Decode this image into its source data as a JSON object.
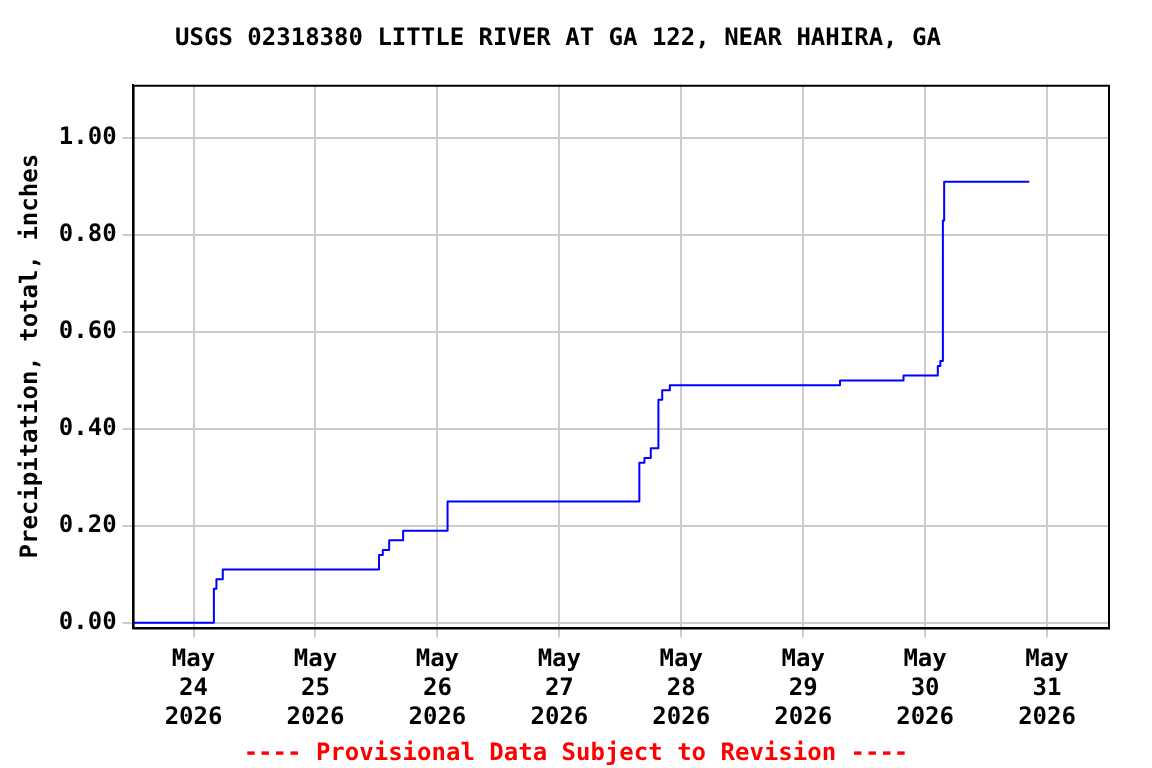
{
  "chart_data": {
    "type": "step",
    "title": "USGS 02318380 LITTLE RIVER AT GA 122, NEAR HAHIRA, GA",
    "ylabel": "Precipitation, total, inches",
    "x": [
      "2026-05-23T12:00",
      "2026-05-24T04:00",
      "2026-05-24T04:30",
      "2026-05-24T05:45",
      "2026-05-25T12:30",
      "2026-05-25T13:15",
      "2026-05-25T14:30",
      "2026-05-25T17:15",
      "2026-05-26T02:00",
      "2026-05-27T15:45",
      "2026-05-27T16:45",
      "2026-05-27T18:00",
      "2026-05-27T19:30",
      "2026-05-27T20:15",
      "2026-05-27T21:45",
      "2026-05-29T07:15",
      "2026-05-29T19:45",
      "2026-05-30T02:30",
      "2026-05-30T03:00",
      "2026-05-30T03:30",
      "2026-05-30T03:45",
      "2026-05-30T20:30"
    ],
    "series": [
      {
        "color": "#0000ff",
        "values": [
          0,
          0.07,
          0.09,
          0.11,
          0.14,
          0.15,
          0.17,
          0.19,
          0.25,
          0.33,
          0.34,
          0.36,
          0.46,
          0.48,
          0.49,
          0.5,
          0.51,
          0.53,
          0.54,
          0.83,
          0.91,
          0.91
        ]
      }
    ],
    "xlim": [
      "2026-05-23T12:00",
      "2026-05-31T12:00"
    ],
    "xticks": [
      {
        "value": "2026-05-24",
        "label": "May 24 2026"
      },
      {
        "value": "2026-05-25",
        "label": "May 25 2026"
      },
      {
        "value": "2026-05-26",
        "label": "May 26 2026"
      },
      {
        "value": "2026-05-27",
        "label": "May 27 2026"
      },
      {
        "value": "2026-05-28",
        "label": "May 28 2026"
      },
      {
        "value": "2026-05-29",
        "label": "May 29 2026"
      },
      {
        "value": "2026-05-30",
        "label": "May 30 2026"
      },
      {
        "value": "2026-05-31",
        "label": "May 31 2026"
      }
    ],
    "ylim": [
      -0.01,
      1.11
    ],
    "yticks": [
      {
        "value": 0,
        "label": "0.00"
      },
      {
        "value": 0.2,
        "label": "0.20"
      },
      {
        "value": 0.4,
        "label": "0.40"
      },
      {
        "value": 0.6,
        "label": "0.60"
      },
      {
        "value": 0.8,
        "label": "0.80"
      },
      {
        "value": 1,
        "label": "1.00"
      }
    ],
    "grid": true,
    "legend": false,
    "marker": "none",
    "line_style": "solid",
    "annotations": [
      "---- Provisional Data Subject to Revision ----"
    ]
  }
}
